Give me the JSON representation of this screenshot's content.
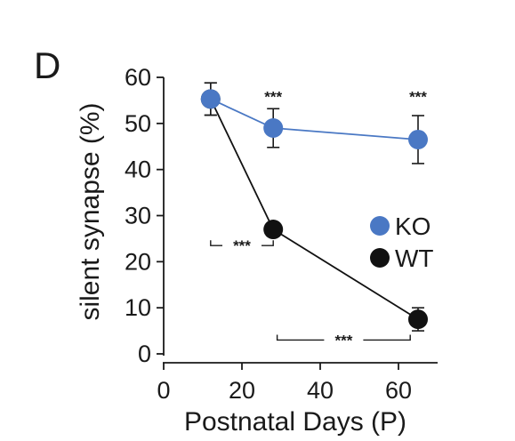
{
  "chart_data": {
    "type": "line",
    "panel_label": "D",
    "xlabel": "Postnatal Days (P)",
    "ylabel": "silent synapse (%)",
    "xlim": [
      0,
      70
    ],
    "ylim": [
      0,
      60
    ],
    "x_ticks": [
      0,
      20,
      40,
      60
    ],
    "y_ticks": [
      0,
      10,
      20,
      30,
      40,
      50,
      60
    ],
    "grid": false,
    "legend_position": "right",
    "series": [
      {
        "name": "KO",
        "color": "#4a78c4",
        "points": [
          {
            "x": 12,
            "y": 55.3,
            "err": 3.5
          },
          {
            "x": 28,
            "y": 49.0,
            "err": 4.2
          },
          {
            "x": 65,
            "y": 46.5,
            "err": 5.2
          }
        ]
      },
      {
        "name": "WT",
        "color": "#111111",
        "points": [
          {
            "x": 12,
            "y": 55.3,
            "err": 3.5
          },
          {
            "x": 28,
            "y": 27.0,
            "err": 0
          },
          {
            "x": 65,
            "y": 7.5,
            "err": 2.5
          }
        ]
      }
    ],
    "annotations": [
      {
        "text": "***",
        "kind": "above",
        "x": 28,
        "y": 57
      },
      {
        "text": "***",
        "kind": "above",
        "x": 65,
        "y": 57
      },
      {
        "text": "***",
        "kind": "bracket",
        "x1": 12,
        "x2": 28,
        "y": 23.5
      },
      {
        "text": "***",
        "kind": "bracket",
        "x1": 29,
        "x2": 63,
        "y": 3
      }
    ]
  }
}
